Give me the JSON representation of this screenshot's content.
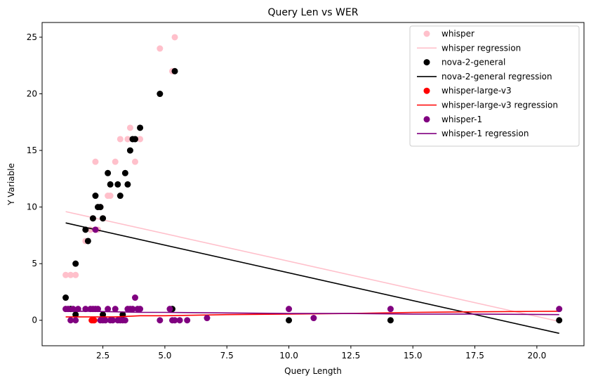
{
  "chart_data": {
    "type": "scatter",
    "title": "Query Len vs WER",
    "xlabel": "Query Length",
    "ylabel": "Y Variable",
    "xlim": [
      0.05,
      21.9
    ],
    "ylim": [
      -2.25,
      26.3
    ],
    "xticks": [
      "2.5",
      "5.0",
      "7.5",
      "10.0",
      "12.5",
      "15.0",
      "17.5",
      "20.0"
    ],
    "xtick_values": [
      2.5,
      5.0,
      7.5,
      10.0,
      12.5,
      15.0,
      17.5,
      20.0
    ],
    "yticks": [
      "0",
      "5",
      "10",
      "15",
      "20",
      "25"
    ],
    "ytick_values": [
      0,
      5,
      10,
      15,
      20,
      25
    ],
    "grid": false,
    "legend_position": "top-right",
    "legend": [
      {
        "label": "whisper",
        "kind": "marker",
        "color": "#ffc0cb"
      },
      {
        "label": "whisper regression",
        "kind": "line",
        "color": "#ffc0cb"
      },
      {
        "label": "nova-2-general",
        "kind": "marker",
        "color": "#000000"
      },
      {
        "label": "nova-2-general regression",
        "kind": "line",
        "color": "#000000"
      },
      {
        "label": "whisper-large-v3",
        "kind": "marker",
        "color": "#ff0000"
      },
      {
        "label": "whisper-large-v3 regression",
        "kind": "line",
        "color": "#ff0000"
      },
      {
        "label": "whisper-1",
        "kind": "marker",
        "color": "#800080"
      },
      {
        "label": "whisper-1 regression",
        "kind": "line",
        "color": "#800080"
      }
    ],
    "series": [
      {
        "name": "whisper",
        "kind": "scatter",
        "color": "#ffc0cb",
        "points": [
          [
            1.0,
            4
          ],
          [
            1.2,
            4
          ],
          [
            1.4,
            4
          ],
          [
            1.8,
            7
          ],
          [
            2.0,
            8
          ],
          [
            2.1,
            9
          ],
          [
            2.2,
            14
          ],
          [
            2.4,
            10
          ],
          [
            2.7,
            11
          ],
          [
            2.8,
            11
          ],
          [
            3.0,
            14
          ],
          [
            3.2,
            16
          ],
          [
            3.5,
            16
          ],
          [
            3.6,
            17
          ],
          [
            3.8,
            14
          ],
          [
            4.0,
            16
          ],
          [
            4.8,
            24
          ],
          [
            5.3,
            22
          ],
          [
            5.4,
            25
          ],
          [
            2.3,
            8
          ],
          [
            2.5,
            9
          ]
        ]
      },
      {
        "name": "whisper regression",
        "kind": "line",
        "color": "#ffc0cb",
        "points": [
          [
            1.0,
            9.6
          ],
          [
            20.9,
            -0.1
          ]
        ]
      },
      {
        "name": "nova-2-general",
        "kind": "scatter",
        "color": "#000000",
        "points": [
          [
            1.0,
            2
          ],
          [
            1.2,
            1
          ],
          [
            1.4,
            5
          ],
          [
            1.8,
            8
          ],
          [
            1.9,
            7
          ],
          [
            2.1,
            9
          ],
          [
            2.2,
            11
          ],
          [
            2.3,
            10
          ],
          [
            2.4,
            10
          ],
          [
            2.5,
            9
          ],
          [
            2.7,
            13
          ],
          [
            2.8,
            12
          ],
          [
            3.1,
            12
          ],
          [
            3.2,
            11
          ],
          [
            3.4,
            13
          ],
          [
            3.5,
            12
          ],
          [
            3.6,
            15
          ],
          [
            3.7,
            16
          ],
          [
            3.8,
            16
          ],
          [
            4.0,
            17
          ],
          [
            4.8,
            20
          ],
          [
            5.3,
            1
          ],
          [
            5.4,
            22
          ],
          [
            10.0,
            0
          ],
          [
            14.1,
            0
          ],
          [
            20.9,
            0
          ],
          [
            1.4,
            0.5
          ],
          [
            2.5,
            0.5
          ],
          [
            3.3,
            0.5
          ]
        ]
      },
      {
        "name": "nova-2-general regression",
        "kind": "line",
        "color": "#000000",
        "points": [
          [
            1.0,
            8.6
          ],
          [
            20.9,
            -1.15
          ]
        ]
      },
      {
        "name": "whisper-large-v3",
        "kind": "scatter",
        "color": "#ff0000",
        "points": [
          [
            2.05,
            0
          ],
          [
            2.1,
            0
          ],
          [
            2.15,
            0
          ]
        ]
      },
      {
        "name": "whisper-large-v3 regression",
        "kind": "line",
        "color": "#ff0000",
        "points": [
          [
            1.0,
            0.3
          ],
          [
            2.0,
            0.3
          ],
          [
            3.0,
            0.3
          ],
          [
            4.0,
            0.4
          ],
          [
            5.0,
            0.4
          ],
          [
            7.5,
            0.5
          ],
          [
            10.0,
            0.55
          ],
          [
            12.5,
            0.6
          ],
          [
            15.0,
            0.7
          ],
          [
            17.5,
            0.75
          ],
          [
            20.9,
            0.8
          ]
        ]
      },
      {
        "name": "whisper-1",
        "kind": "scatter",
        "color": "#800080",
        "points": [
          [
            1.0,
            1
          ],
          [
            1.1,
            1
          ],
          [
            1.2,
            0
          ],
          [
            1.3,
            1
          ],
          [
            1.4,
            0
          ],
          [
            1.5,
            1
          ],
          [
            1.8,
            1
          ],
          [
            2.0,
            1
          ],
          [
            2.1,
            1
          ],
          [
            2.2,
            1
          ],
          [
            2.3,
            1
          ],
          [
            2.4,
            0
          ],
          [
            2.5,
            0
          ],
          [
            2.6,
            0
          ],
          [
            2.7,
            1
          ],
          [
            2.8,
            0
          ],
          [
            2.9,
            0
          ],
          [
            3.0,
            1
          ],
          [
            3.1,
            0
          ],
          [
            3.2,
            0
          ],
          [
            3.3,
            0
          ],
          [
            3.4,
            0
          ],
          [
            3.5,
            1
          ],
          [
            3.6,
            1
          ],
          [
            3.7,
            1
          ],
          [
            3.8,
            2
          ],
          [
            3.9,
            1
          ],
          [
            4.0,
            1
          ],
          [
            4.8,
            0
          ],
          [
            5.2,
            1
          ],
          [
            5.3,
            0
          ],
          [
            5.4,
            0
          ],
          [
            5.6,
            0
          ],
          [
            5.9,
            0
          ],
          [
            6.7,
            0.2
          ],
          [
            10.0,
            1
          ],
          [
            11.0,
            0.2
          ],
          [
            14.1,
            1
          ],
          [
            20.9,
            1
          ],
          [
            2.2,
            8
          ]
        ]
      },
      {
        "name": "whisper-1 regression",
        "kind": "line",
        "color": "#800080",
        "points": [
          [
            1.0,
            0.8
          ],
          [
            2.0,
            0.8
          ],
          [
            3.0,
            0.75
          ],
          [
            4.0,
            0.7
          ],
          [
            5.0,
            0.7
          ],
          [
            7.5,
            0.65
          ],
          [
            10.0,
            0.6
          ],
          [
            12.5,
            0.6
          ],
          [
            15.0,
            0.55
          ],
          [
            17.5,
            0.55
          ],
          [
            20.9,
            0.5
          ]
        ]
      }
    ]
  }
}
